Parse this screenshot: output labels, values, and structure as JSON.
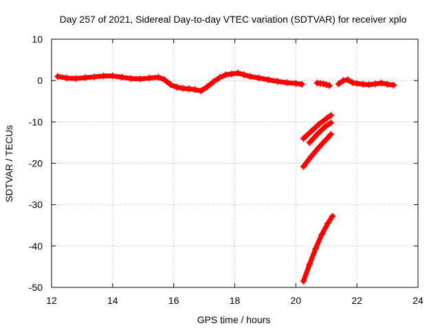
{
  "chart_data": {
    "type": "scatter",
    "title": "Day 257 of 2021, Sidereal Day-to-day VTEC variation (SDTVAR) for receiver xplo",
    "xlabel": "GPS time / hours",
    "ylabel": "SDTVAR / TECUs",
    "xlim": [
      12,
      24
    ],
    "ylim": [
      -50,
      10
    ],
    "xticks": [
      12,
      14,
      16,
      18,
      20,
      22,
      24
    ],
    "yticks": [
      10,
      0,
      -10,
      -20,
      -30,
      -40,
      -50
    ],
    "grid": true,
    "legend": "none",
    "marker": "+",
    "series_color": "#ff0000",
    "series": [
      {
        "name": "main-trace",
        "x": [
          12.2,
          12.5,
          12.8,
          13.1,
          13.4,
          13.7,
          14.0,
          14.3,
          14.6,
          14.9,
          15.2,
          15.5,
          15.7,
          15.9,
          16.1,
          16.3,
          16.5,
          16.7,
          16.9,
          17.1,
          17.3,
          17.5,
          17.7,
          17.9,
          18.1,
          18.3,
          18.5,
          18.8,
          19.1,
          19.4,
          19.7,
          20.0,
          20.2
        ],
        "y": [
          1.0,
          0.6,
          0.5,
          0.7,
          0.9,
          1.1,
          1.1,
          0.8,
          0.5,
          0.4,
          0.6,
          0.8,
          0.2,
          -1.0,
          -1.6,
          -1.9,
          -2.0,
          -2.2,
          -2.5,
          -1.5,
          -0.3,
          0.7,
          1.4,
          1.6,
          1.8,
          1.4,
          1.0,
          0.6,
          0.2,
          -0.2,
          -0.5,
          -0.7,
          -0.9
        ]
      },
      {
        "name": "segment-20.7",
        "x": [
          20.7,
          20.8,
          20.9,
          21.0,
          21.1
        ],
        "y": [
          -0.6,
          -0.7,
          -0.8,
          -1.0,
          -1.2
        ]
      },
      {
        "name": "segment-21.5",
        "x": [
          21.4,
          21.55,
          21.7,
          21.85,
          22.0,
          22.2,
          22.4,
          22.6,
          22.8,
          23.0,
          23.2
        ],
        "y": [
          -0.8,
          0.0,
          0.2,
          -0.5,
          -0.7,
          -0.9,
          -1.0,
          -0.8,
          -0.6,
          -0.9,
          -1.1
        ]
      },
      {
        "name": "rising-a",
        "x": [
          20.25,
          20.5,
          20.75,
          21.0,
          21.15
        ],
        "y": [
          -14.0,
          -12.3,
          -10.6,
          -9.2,
          -8.4
        ]
      },
      {
        "name": "rising-b",
        "x": [
          20.45,
          20.7,
          20.95,
          21.15
        ],
        "y": [
          -15.0,
          -13.0,
          -11.2,
          -10.2
        ]
      },
      {
        "name": "rising-c",
        "x": [
          20.25,
          20.5,
          20.75,
          21.0,
          21.15
        ],
        "y": [
          -20.8,
          -18.4,
          -16.2,
          -14.2,
          -13.0
        ]
      },
      {
        "name": "rising-d",
        "x": [
          20.25,
          20.45,
          20.65,
          20.85,
          21.05,
          21.2
        ],
        "y": [
          -48.5,
          -44.4,
          -40.6,
          -37.2,
          -34.5,
          -32.8
        ]
      }
    ]
  }
}
